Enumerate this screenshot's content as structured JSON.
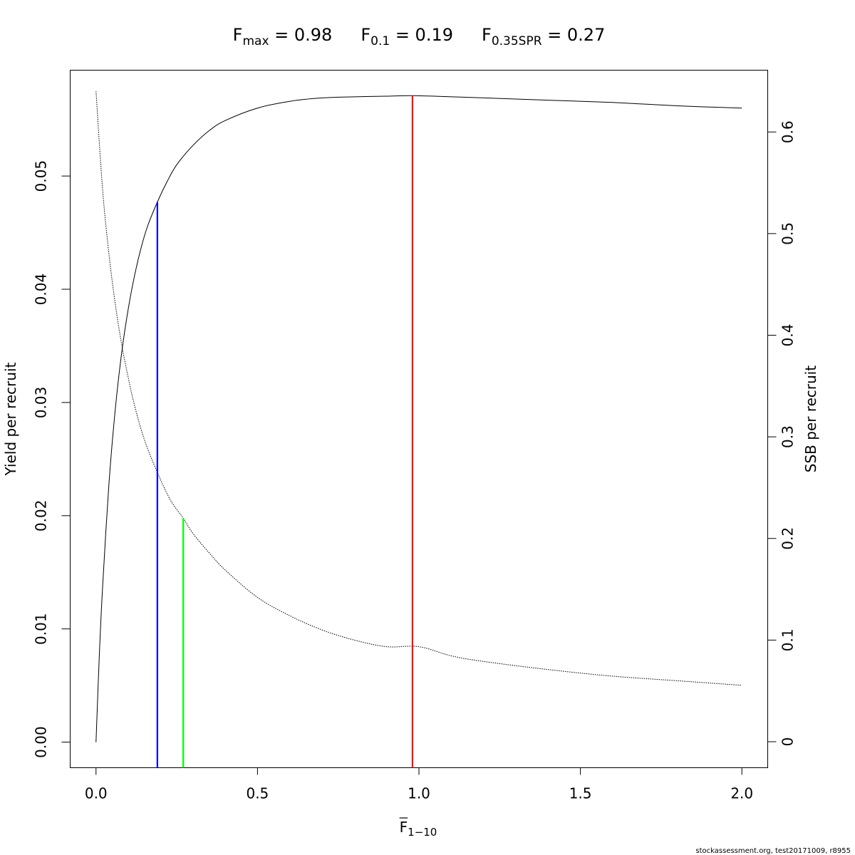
{
  "title": {
    "fmax_sym": "F",
    "fmax_sub": "max",
    "fmax_val": " = 0.98",
    "f01_sym": "F",
    "f01_sub": "0.1",
    "f01_val": " = 0.19",
    "fspr_sym": "F",
    "fspr_sub": "0.35SPR",
    "fspr_val": " = 0.27"
  },
  "footer": "stockassessment.org, test20171009, r8955",
  "chart_data": {
    "type": "line",
    "xlabel": "F",
    "xlabel_sub": "1−10",
    "xlabel_overline": true,
    "ylabel": "Yield per recruit",
    "y2label": "SSB per recruit",
    "xlim": [
      -0.08,
      2.08
    ],
    "ylim": [
      -0.00226,
      0.05935
    ],
    "y2lim": [
      -0.0256,
      0.6608
    ],
    "xticks": [
      0.0,
      0.5,
      1.0,
      1.5,
      2.0
    ],
    "xtick_labels": [
      "0.0",
      "0.5",
      "1.0",
      "1.5",
      "2.0"
    ],
    "yticks": [
      0.0,
      0.01,
      0.02,
      0.03,
      0.04,
      0.05
    ],
    "ytick_labels": [
      "0.00",
      "0.01",
      "0.02",
      "0.03",
      "0.04",
      "0.05"
    ],
    "y2ticks": [
      0,
      0.1,
      0.2,
      0.3,
      0.4,
      0.5,
      0.6
    ],
    "y2tick_labels": [
      "0",
      "0.1",
      "0.2",
      "0.3",
      "0.4",
      "0.5",
      "0.6"
    ],
    "series": [
      {
        "axis": "left",
        "style": "solid",
        "color": "#000000",
        "x": [
          0,
          0.01,
          0.02,
          0.04,
          0.06,
          0.08,
          0.1,
          0.12,
          0.14,
          0.16,
          0.19,
          0.22,
          0.25,
          0.3,
          0.35,
          0.4,
          0.5,
          0.6,
          0.7,
          0.8,
          0.9,
          0.98,
          1.1,
          1.2,
          1.4,
          1.6,
          1.8,
          2.0
        ],
        "y": [
          0,
          0.0075,
          0.0135,
          0.0228,
          0.0295,
          0.0345,
          0.0383,
          0.0413,
          0.0437,
          0.0456,
          0.0477,
          0.0495,
          0.051,
          0.0527,
          0.054,
          0.0549,
          0.056,
          0.0566,
          0.0569,
          0.057,
          0.05705,
          0.0571,
          0.057,
          0.0569,
          0.0567,
          0.0565,
          0.0562,
          0.056
        ]
      },
      {
        "axis": "right",
        "style": "dotted",
        "color": "#000000",
        "x": [
          0,
          0.02,
          0.04,
          0.06,
          0.08,
          0.1,
          0.12,
          0.15,
          0.19,
          0.23,
          0.27,
          0.3,
          0.35,
          0.4,
          0.5,
          0.6,
          0.7,
          0.8,
          0.9,
          1.0,
          1.1,
          1.2,
          1.4,
          1.6,
          1.8,
          2.0
        ],
        "y": [
          0.64,
          0.545,
          0.48,
          0.43,
          0.39,
          0.358,
          0.33,
          0.297,
          0.265,
          0.238,
          0.22,
          0.205,
          0.186,
          0.169,
          0.142,
          0.124,
          0.11,
          0.1,
          0.0935,
          0.0935,
          0.0845,
          0.079,
          0.071,
          0.0645,
          0.06,
          0.0555
        ]
      }
    ],
    "reference_lines": [
      {
        "name": "F0.1",
        "x": 0.19,
        "axis": "left",
        "y_top": 0.0477,
        "color": "#0000ff"
      },
      {
        "name": "F0.35SPR",
        "x": 0.27,
        "axis": "right",
        "y_top": 0.22,
        "color": "#00ff00"
      },
      {
        "name": "Fmax",
        "x": 0.98,
        "axis": "left",
        "y_top": 0.0571,
        "color": "#ff0000"
      }
    ]
  }
}
